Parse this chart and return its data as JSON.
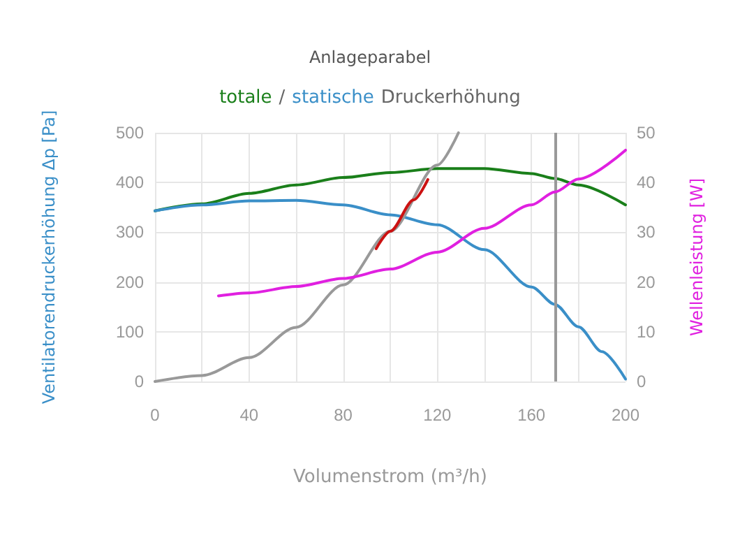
{
  "chart_data": {
    "type": "line",
    "title": "Anlageparabel",
    "subtitle": "totale / statische Druckerhöhung",
    "xlabel": "Volumenstrom (m³/h)",
    "ylabel": "Ventilatorendruckerhöhung Δp [Pa]",
    "y2label": "Wellenleistung [W]",
    "xlim": [
      0,
      200
    ],
    "xticks": [
      0,
      {
        "value": 20,
        "label": null
      },
      40,
      {
        "value": 60,
        "label": null
      },
      80,
      {
        "value": 100,
        "label": null
      },
      120,
      {
        "value": 140,
        "label": null
      },
      160,
      {
        "value": 180,
        "label": null
      },
      200
    ],
    "ylim": [
      0,
      500
    ],
    "yticks": [
      0,
      100,
      200,
      300,
      400,
      500
    ],
    "y2lim": [
      0,
      50
    ],
    "y2ticks": [
      0,
      10,
      20,
      30,
      40,
      50
    ],
    "grid": true,
    "marker": "none",
    "line_style": "solid",
    "series": [
      {
        "color": "#1a7f1a",
        "x": [
          0,
          20,
          40,
          60,
          80,
          100,
          120,
          140,
          160,
          170,
          180,
          200
        ],
        "values": [
          343,
          357,
          378,
          395,
          410,
          420,
          428,
          428,
          418,
          408,
          395,
          355
        ]
      },
      {
        "color": "#3a8fc8",
        "x": [
          0,
          20,
          40,
          60,
          80,
          100,
          120,
          140,
          160,
          170,
          180,
          190,
          200
        ],
        "values": [
          343,
          355,
          363,
          364,
          355,
          335,
          315,
          265,
          190,
          155,
          110,
          60,
          5
        ]
      },
      {
        "color": "#999999",
        "x": [
          0,
          20,
          40,
          60,
          80,
          100,
          120,
          129
        ],
        "values": [
          0,
          12,
          48,
          109,
          194,
          302,
          435,
          500
        ]
      },
      {
        "color": "#cc1111",
        "x": [
          94,
          100,
          110,
          116
        ],
        "values": [
          267,
          302,
          365,
          406
        ]
      },
      {
        "color": "#e020e0",
        "axis": "y2",
        "x": [
          27,
          40,
          60,
          80,
          100,
          120,
          140,
          160,
          170,
          180,
          200
        ],
        "values": [
          17.2,
          17.8,
          19.1,
          20.7,
          22.6,
          26,
          30.8,
          35.5,
          38.1,
          40.7,
          46.5
        ]
      }
    ],
    "ref_lines": [
      {
        "axis": "x",
        "value": 170,
        "color": "#999999"
      }
    ]
  }
}
